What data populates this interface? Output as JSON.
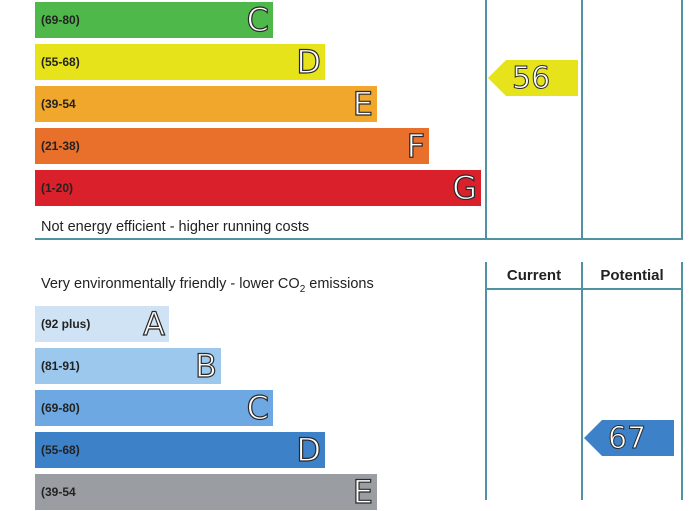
{
  "energy": {
    "bands": [
      {
        "range": "(69-80)",
        "letter": "C",
        "color": "#4fb84a"
      },
      {
        "range": "(55-68)",
        "letter": "D",
        "color": "#e6e31a"
      },
      {
        "range": "(39-54",
        "letter": "E",
        "color": "#f0a72c"
      },
      {
        "range": "(21-38)",
        "letter": "F",
        "color": "#e8702b"
      },
      {
        "range": "(1-20)",
        "letter": "G",
        "color": "#d9202b"
      }
    ],
    "footer_caption": "Not energy efficient - higher running costs",
    "current_rating": "56",
    "current_color": "#e6e31a"
  },
  "environmental": {
    "header_caption_before": "Very environmentally friendly - lower CO",
    "header_caption_sub": "2",
    "header_caption_after": " emissions",
    "column_current": "Current",
    "column_potential": "Potential",
    "bands": [
      {
        "range": "(92 plus)",
        "letter": "A",
        "color": "#cfe3f5"
      },
      {
        "range": "(81-91)",
        "letter": "B",
        "color": "#9cc8ee"
      },
      {
        "range": "(69-80)",
        "letter": "C",
        "color": "#6da8e2"
      },
      {
        "range": "(55-68)",
        "letter": "D",
        "color": "#3d82c8"
      },
      {
        "range": "(39-54",
        "letter": "E",
        "color": "#9a9ea3"
      }
    ],
    "potential_rating": "67",
    "potential_color": "#3d82c8"
  }
}
